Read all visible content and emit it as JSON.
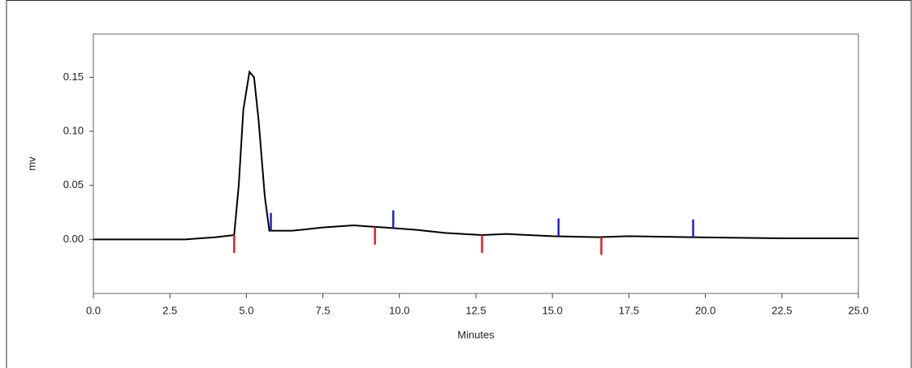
{
  "chart_data": {
    "type": "line",
    "xlabel": "Minutes",
    "ylabel": "mv",
    "xlim": [
      0,
      25
    ],
    "ylim": [
      -0.05,
      0.19
    ],
    "xticks": [
      {
        "value": 0,
        "label": "0.0"
      },
      2.5,
      {
        "value": 5,
        "label": "5.0"
      },
      7.5,
      {
        "value": 10,
        "label": "10.0"
      },
      12.5,
      {
        "value": 15,
        "label": "15.0"
      },
      17.5,
      {
        "value": 20,
        "label": "20.0"
      },
      22.5,
      {
        "value": 25,
        "label": "25.0"
      }
    ],
    "yticks": [
      {
        "value": 0,
        "label": "0.00"
      },
      0.05,
      {
        "value": 0.1,
        "label": "0.10"
      },
      0.15
    ],
    "series": [
      {
        "color": "#000000",
        "x": [
          0,
          1.7,
          3,
          4,
          4.6,
          4.75,
          4.9,
          5.1,
          5.25,
          5.4,
          5.6,
          5.75,
          6.5,
          7.5,
          8.5,
          9.0,
          9.5,
          10.5,
          11.5,
          12.7,
          13.5,
          15,
          16.5,
          17.5,
          19.5,
          22.5,
          25
        ],
        "values": [
          0,
          0,
          0,
          0.002,
          0.004,
          0.05,
          0.12,
          0.155,
          0.15,
          0.11,
          0.04,
          0.008,
          0.008,
          0.011,
          0.013,
          0.012,
          0.011,
          0.009,
          0.006,
          0.004,
          0.005,
          0.003,
          0.002,
          0.003,
          0.002,
          0.001,
          0.001
        ]
      }
    ],
    "markers": [
      {
        "color": "#e0202a",
        "direction": "down",
        "x": [
          4.6,
          9.2,
          12.7,
          16.6
        ]
      },
      {
        "color": "#2020d0",
        "direction": "up",
        "x": [
          5.8,
          9.8,
          15.2,
          19.6
        ]
      }
    ]
  }
}
